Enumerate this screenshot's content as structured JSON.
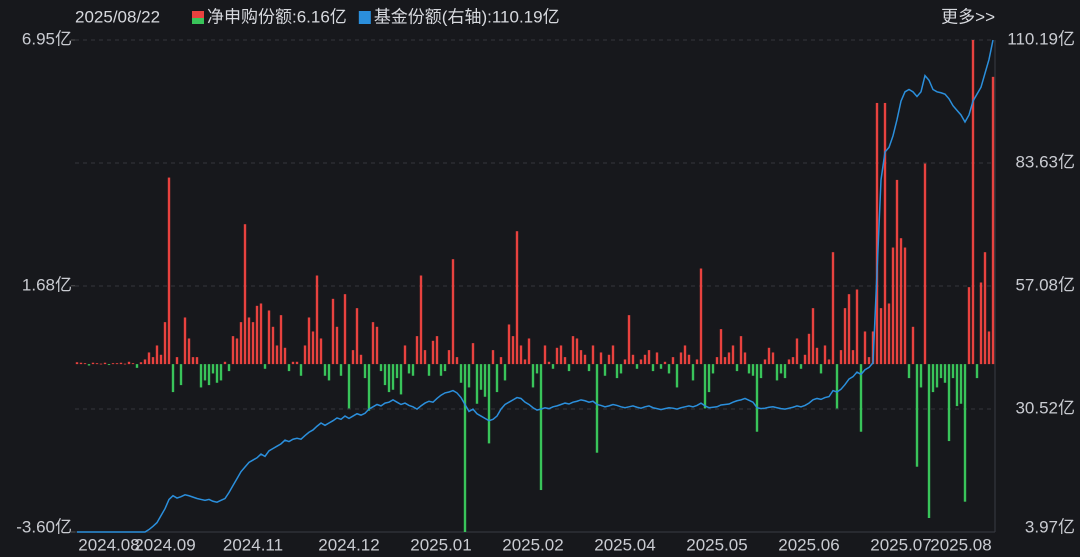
{
  "chart_data": {
    "type": "bar",
    "date": "2025/08/22",
    "more": "更多>>",
    "categories": [
      null,
      null,
      null,
      null,
      null,
      null,
      null,
      null,
      "2024.08",
      null,
      null,
      null,
      null,
      null,
      null,
      null,
      null,
      null,
      null,
      null,
      null,
      null,
      "2024.09",
      null,
      null,
      null,
      null,
      null,
      null,
      null,
      null,
      null,
      null,
      null,
      null,
      null,
      null,
      null,
      null,
      null,
      null,
      null,
      null,
      null,
      "2024.11",
      null,
      null,
      null,
      null,
      null,
      null,
      null,
      null,
      null,
      null,
      null,
      null,
      null,
      null,
      null,
      null,
      null,
      null,
      null,
      null,
      null,
      null,
      null,
      "2024.12",
      null,
      null,
      null,
      null,
      null,
      null,
      null,
      null,
      null,
      null,
      null,
      null,
      null,
      null,
      null,
      null,
      null,
      null,
      null,
      null,
      null,
      null,
      "2025.01",
      null,
      null,
      null,
      null,
      null,
      null,
      null,
      null,
      null,
      null,
      null,
      null,
      null,
      null,
      null,
      null,
      null,
      null,
      null,
      null,
      null,
      null,
      "2025.02",
      null,
      null,
      null,
      null,
      null,
      null,
      null,
      null,
      null,
      null,
      null,
      null,
      null,
      null,
      null,
      null,
      null,
      null,
      null,
      null,
      null,
      null,
      "2025.04",
      null,
      null,
      null,
      null,
      null,
      null,
      null,
      null,
      null,
      null,
      null,
      null,
      null,
      null,
      null,
      null,
      null,
      null,
      null,
      null,
      null,
      null,
      "2025.05",
      null,
      null,
      null,
      null,
      null,
      null,
      null,
      null,
      null,
      null,
      null,
      null,
      null,
      null,
      null,
      null,
      null,
      null,
      null,
      null,
      null,
      null,
      "2025.06",
      null,
      null,
      null,
      null,
      null,
      null,
      null,
      null,
      null,
      null,
      null,
      null,
      null,
      null,
      null,
      null,
      null,
      null,
      null,
      null,
      null,
      null,
      "2025.07",
      null,
      null,
      null,
      null,
      null,
      null,
      null,
      null,
      null,
      null,
      null,
      null,
      null,
      null,
      "2025.08",
      null,
      null,
      null,
      null,
      null,
      null,
      null,
      null
    ],
    "series": [
      {
        "name": "净申购份额:6.16亿",
        "type": "bar",
        "color": "#e8423f",
        "negative_color": "#39c45a",
        "values": [
          0.04,
          0.03,
          0.02,
          -0.03,
          0.03,
          0.02,
          0.01,
          0.03,
          -0.02,
          0.02,
          0.02,
          0.03,
          0.01,
          0.05,
          0.02,
          -0.08,
          0.04,
          0.1,
          0.25,
          0.15,
          0.4,
          0.2,
          0.9,
          4.0,
          -0.6,
          0.15,
          -0.45,
          1.0,
          0.55,
          0.15,
          0.15,
          -0.5,
          -0.35,
          -0.45,
          -0.2,
          -0.4,
          -0.35,
          0.05,
          -0.15,
          0.6,
          0.55,
          0.9,
          3.0,
          1.0,
          0.9,
          1.25,
          1.3,
          -0.1,
          1.15,
          0.8,
          0.4,
          1.05,
          0.35,
          -0.15,
          0.05,
          0.05,
          -0.25,
          0.4,
          1.0,
          0.7,
          1.9,
          0.55,
          -0.25,
          -0.35,
          1.4,
          0.8,
          -0.25,
          1.5,
          -0.95,
          0.3,
          1.2,
          0.2,
          -0.3,
          -1.0,
          0.9,
          0.8,
          -0.15,
          -0.45,
          -0.6,
          -0.55,
          -0.3,
          -0.65,
          0.4,
          -0.2,
          -0.25,
          0.6,
          1.9,
          0.3,
          -0.25,
          0.5,
          0.6,
          -0.25,
          -0.15,
          0.3,
          2.25,
          0.15,
          -0.4,
          -3.6,
          -0.5,
          0.45,
          -0.85,
          -0.55,
          -0.7,
          -1.7,
          0.3,
          -0.6,
          0.15,
          -0.35,
          0.85,
          0.6,
          2.85,
          0.4,
          0.1,
          0.55,
          -0.5,
          -0.2,
          -2.7,
          0.4,
          0.05,
          -0.1,
          0.35,
          0.4,
          0.15,
          -0.15,
          0.6,
          0.55,
          0.3,
          0.2,
          -0.15,
          0.4,
          -1.9,
          0.25,
          -0.25,
          0.2,
          0.4,
          -0.3,
          -0.2,
          0.1,
          1.05,
          0.2,
          -0.1,
          0.1,
          0.2,
          0.3,
          -0.15,
          0.25,
          -0.1,
          0.05,
          -0.2,
          0.15,
          -0.5,
          0.25,
          0.4,
          0.2,
          -0.35,
          0.1,
          2.05,
          -0.95,
          -0.6,
          -0.2,
          0.15,
          0.75,
          0.15,
          0.25,
          0.4,
          -0.15,
          0.6,
          0.25,
          -0.2,
          -0.25,
          -1.45,
          -0.3,
          0.1,
          0.35,
          0.25,
          -0.35,
          -0.2,
          -0.3,
          0.1,
          0.15,
          0.55,
          -0.1,
          0.2,
          0.65,
          1.2,
          0.35,
          -0.2,
          0.4,
          0.1,
          2.4,
          -0.95,
          0.3,
          1.2,
          1.5,
          0.3,
          1.6,
          -1.45,
          0.7,
          0.15,
          0.7,
          5.6,
          1.2,
          5.6,
          1.3,
          2.5,
          3.95,
          2.7,
          2.5,
          -0.3,
          0.8,
          -2.2,
          -0.5,
          4.3,
          -3.3,
          -0.6,
          -0.5,
          -0.3,
          -0.4,
          -1.65,
          -0.3,
          -0.9,
          -0.85,
          -2.95,
          1.65,
          6.95,
          -0.3,
          1.75,
          2.4,
          0.7,
          6.16
        ]
      },
      {
        "name": "基金份额(右轴):110.19亿",
        "type": "line",
        "axis": "y2",
        "color": "#2b8fdc",
        "values": [
          3.97,
          3.97,
          3.97,
          3.97,
          3.97,
          3.97,
          3.97,
          3.97,
          3.97,
          3.97,
          3.97,
          3.97,
          3.97,
          3.97,
          3.97,
          3.97,
          3.97,
          3.97,
          4.5,
          5.2,
          6.0,
          7.5,
          9.0,
          11.0,
          11.8,
          11.3,
          11.6,
          12.0,
          11.8,
          11.5,
          11.2,
          11.0,
          10.8,
          11.0,
          10.6,
          10.4,
          10.8,
          11.2,
          12.5,
          14.0,
          15.5,
          17.0,
          18.0,
          19.0,
          19.5,
          20.0,
          20.8,
          20.3,
          21.5,
          22.0,
          22.5,
          23.0,
          23.8,
          23.5,
          24.0,
          24.2,
          24.0,
          24.8,
          25.5,
          26.0,
          26.8,
          27.5,
          27.0,
          27.5,
          28.0,
          28.6,
          28.3,
          29.0,
          28.5,
          29.0,
          29.5,
          29.2,
          29.6,
          30.5,
          31.0,
          31.5,
          31.2,
          31.8,
          32.0,
          32.5,
          32.0,
          31.5,
          31.8,
          31.3,
          31.0,
          30.5,
          31.2,
          31.8,
          32.2,
          32.0,
          32.8,
          33.5,
          34.0,
          34.2,
          34.5,
          34.0,
          33.0,
          31.5,
          30.0,
          30.5,
          29.5,
          29.0,
          28.5,
          28.0,
          28.3,
          29.0,
          30.5,
          31.5,
          32.0,
          32.5,
          33.0,
          32.8,
          32.0,
          31.5,
          30.8,
          30.3,
          30.5,
          30.8,
          30.6,
          31.0,
          31.2,
          31.5,
          31.8,
          31.6,
          32.0,
          32.2,
          32.5,
          32.3,
          32.0,
          32.2,
          31.5,
          31.3,
          31.0,
          31.2,
          31.5,
          31.3,
          31.0,
          30.8,
          31.0,
          31.2,
          30.9,
          30.7,
          31.0,
          31.2,
          30.8,
          30.6,
          30.4,
          30.6,
          30.8,
          30.7,
          30.5,
          30.8,
          31.0,
          31.2,
          31.0,
          31.3,
          31.8,
          31.2,
          30.8,
          30.9,
          31.0,
          31.4,
          31.5,
          31.6,
          32.0,
          32.3,
          32.5,
          32.8,
          32.4,
          32.0,
          30.8,
          30.6,
          30.7,
          30.9,
          31.0,
          30.8,
          30.6,
          30.5,
          30.7,
          30.9,
          31.2,
          31.0,
          31.3,
          31.8,
          32.5,
          32.8,
          32.6,
          33.0,
          33.2,
          34.5,
          34.2,
          34.8,
          35.8,
          37.0,
          37.5,
          38.5,
          38.0,
          39.0,
          39.5,
          40.5,
          60.0,
          80.0,
          86.0,
          87.0,
          89.5,
          93.0,
          97.0,
          99.0,
          99.5,
          99.0,
          98.0,
          99.0,
          102.5,
          101.5,
          99.5,
          99.0,
          98.8,
          98.5,
          97.5,
          96.0,
          95.0,
          94.0,
          92.5,
          94.0,
          97.0,
          98.5,
          100.0,
          103.0,
          106.0,
          110.19
        ]
      }
    ],
    "ylim": [
      -3.6,
      6.95
    ],
    "yticks": [
      {
        "value": -3.6,
        "label": "-3.60亿"
      },
      {
        "value": 1.68,
        "label": "1.68亿"
      },
      {
        "value": 6.95,
        "label": "6.95亿"
      }
    ],
    "y2lim": [
      3.97,
      110.19
    ],
    "y2ticks": [
      {
        "value": 3.97,
        "label": "3.97亿"
      },
      {
        "value": 30.52,
        "label": "30.52亿"
      },
      {
        "value": 57.08,
        "label": "57.08亿"
      },
      {
        "value": 83.63,
        "label": "83.63亿"
      },
      {
        "value": 110.19,
        "label": "110.19亿"
      }
    ],
    "grid": true
  }
}
